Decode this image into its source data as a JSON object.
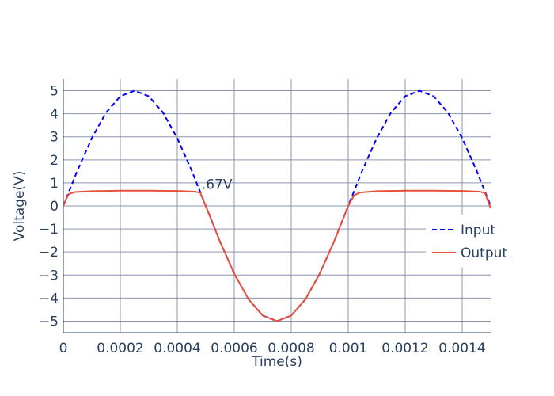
{
  "chart_data": {
    "type": "line",
    "title": "",
    "xlabel": "Time(s)",
    "ylabel": "Voltage(V)",
    "xlim": [
      0,
      0.0015
    ],
    "ylim": [
      -5.5,
      5.5
    ],
    "x_tick_values": [
      0,
      0.0002,
      0.0004,
      0.0006,
      0.0008,
      0.001,
      0.0012,
      0.0014
    ],
    "x_tick_labels": [
      "0",
      "0.0002",
      "0.0004",
      "0.0006",
      "0.0008",
      "0.001",
      "0.0012",
      "0.0014"
    ],
    "y_tick_values": [
      5,
      4,
      3,
      2,
      1,
      0,
      -1,
      -2,
      -3,
      -4,
      -5
    ],
    "y_tick_labels": [
      "5",
      "4",
      "3",
      "2",
      "1",
      "0",
      "−1",
      "−2",
      "−3",
      "−4",
      "−5"
    ],
    "grid": true,
    "legend_position": "right",
    "annotation": {
      "text": ".67V",
      "x": 0.00048,
      "y": 0.67
    },
    "series": [
      {
        "name": "Input",
        "style": "dashed",
        "color": "#0000ff",
        "x": [
          0,
          5e-05,
          0.0001,
          0.00015,
          0.0002,
          0.00025,
          0.0003,
          0.00035,
          0.0004,
          0.00045,
          0.0005,
          0.00055,
          0.0006,
          0.00065,
          0.0007,
          0.00075,
          0.0008,
          0.00085,
          0.0009,
          0.00095,
          0.001,
          0.00105,
          0.0011,
          0.00115,
          0.0012,
          0.00125,
          0.0013,
          0.00135,
          0.0014,
          0.00145,
          0.0015
        ],
        "y": [
          0,
          1.55,
          2.94,
          4.05,
          4.76,
          5,
          4.76,
          4.05,
          2.94,
          1.55,
          0,
          -1.55,
          -2.94,
          -4.05,
          -4.76,
          -5,
          -4.76,
          -4.05,
          -2.94,
          -1.55,
          0,
          1.55,
          2.94,
          4.05,
          4.76,
          5,
          4.76,
          4.05,
          2.94,
          1.55,
          0
        ]
      },
      {
        "name": "Output",
        "style": "solid",
        "color": "#e8503a",
        "x": [
          0,
          1e-05,
          2e-05,
          4e-05,
          0.0001,
          0.0002,
          0.0003,
          0.0004,
          0.00046,
          0.00048,
          0.0005,
          0.00055,
          0.0006,
          0.00065,
          0.0007,
          0.00075,
          0.0008,
          0.00085,
          0.0009,
          0.00095,
          0.001,
          0.00102,
          0.00104,
          0.0011,
          0.0012,
          0.0013,
          0.0014,
          0.00146,
          0.00148,
          0.0015
        ],
        "y": [
          0,
          0.3,
          0.52,
          0.6,
          0.64,
          0.66,
          0.66,
          0.65,
          0.62,
          0.58,
          0,
          -1.55,
          -2.94,
          -4.05,
          -4.76,
          -5,
          -4.76,
          -4.05,
          -2.94,
          -1.55,
          0,
          0.45,
          0.58,
          0.64,
          0.66,
          0.66,
          0.65,
          0.62,
          0.56,
          -0.1
        ]
      }
    ]
  }
}
